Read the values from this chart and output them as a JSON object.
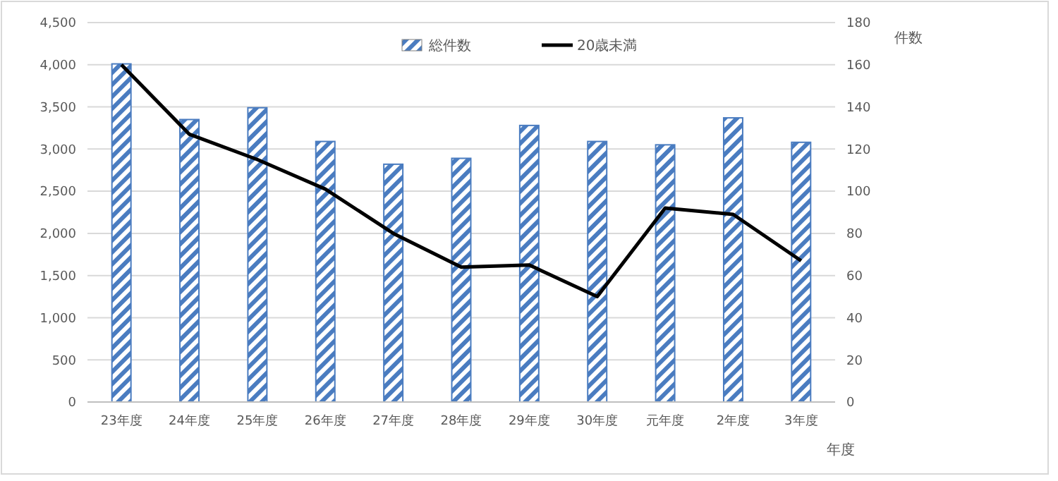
{
  "chart_data": {
    "type": "bar",
    "categories": [
      "23年度",
      "24年度",
      "25年度",
      "26年度",
      "27年度",
      "28年度",
      "29年度",
      "30年度",
      "元年度",
      "2年度",
      "3年度"
    ],
    "series": [
      {
        "name": "総件数",
        "color": "#4a7cc0",
        "values": [
          4010,
          3350,
          3490,
          3090,
          2820,
          2890,
          3280,
          3090,
          3050,
          3370,
          3080
        ]
      },
      {
        "name": "20歳未満",
        "type": "line",
        "axis": "y2",
        "color": "#000000",
        "values": [
          160,
          127,
          115,
          101,
          80,
          64,
          65,
          50,
          92,
          89,
          67
        ]
      }
    ],
    "ylim": [
      0,
      4500
    ],
    "yticks": [
      {
        "value": 0,
        "label": "0"
      },
      {
        "value": 500,
        "label": "500"
      },
      {
        "value": 1000,
        "label": "1,000"
      },
      {
        "value": 1500,
        "label": "1,500"
      },
      {
        "value": 2000,
        "label": "2,000"
      },
      {
        "value": 2500,
        "label": "2,500"
      },
      {
        "value": 3000,
        "label": "3,000"
      },
      {
        "value": 3500,
        "label": "3,500"
      },
      {
        "value": 4000,
        "label": "4,000"
      },
      {
        "value": 4500,
        "label": "4,500"
      }
    ],
    "y2lim": [
      0,
      180
    ],
    "y2ticks": [
      0,
      20,
      40,
      60,
      80,
      100,
      120,
      140,
      160,
      180
    ],
    "y2label": "件数",
    "xlabel": "年度",
    "grid": "y",
    "legend": "top",
    "marker": "none",
    "line_style": "solid"
  }
}
